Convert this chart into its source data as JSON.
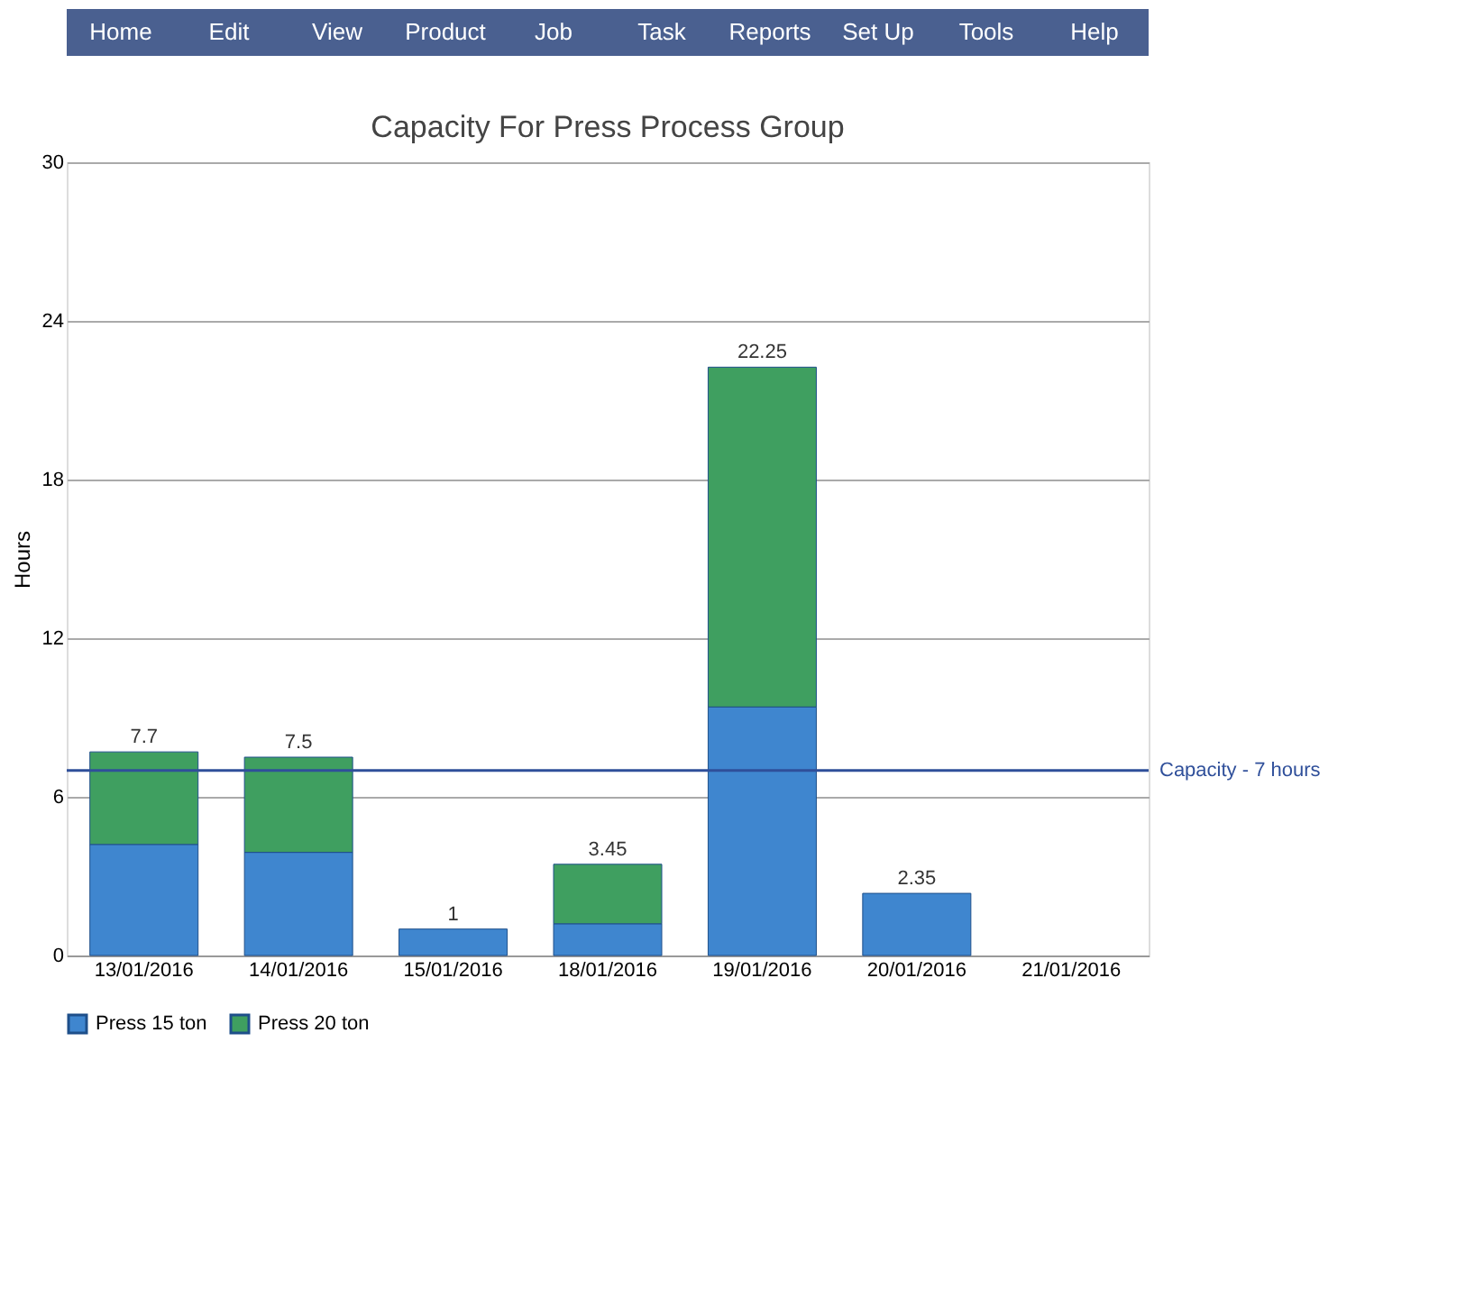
{
  "chart_data": {
    "type": "bar",
    "stacked": true,
    "title": "Capacity For Press Process Group",
    "ylabel": "Hours",
    "categories": [
      "13/01/2016",
      "14/01/2016",
      "15/01/2016",
      "18/01/2016",
      "19/01/2016",
      "20/01/2016",
      "21/01/2016"
    ],
    "series": [
      {
        "name": "Press 15 ton",
        "color": "#3f86cf",
        "values": [
          4.2,
          3.9,
          1,
          1.2,
          9.4,
          2.35,
          null
        ]
      },
      {
        "name": "Press 20 ton",
        "color": "#3f9f60",
        "values": [
          3.5,
          3.6,
          null,
          2.25,
          12.85,
          null,
          null
        ]
      }
    ],
    "totals": [
      "7.7",
      "7.5",
      "1",
      "3.45",
      "22.25",
      "2.35",
      null
    ],
    "ylim": [
      0,
      30
    ],
    "yticks": [
      0,
      6,
      12,
      18,
      24,
      30
    ],
    "grid": "y",
    "legend": "bottom",
    "ref_lines": [
      {
        "axis": "y",
        "value": 7,
        "label": "Capacity - 7 hours",
        "color": "#2f4f9a"
      }
    ],
    "annotations": [
      "Home",
      "Edit",
      "View",
      "Product",
      "Job",
      "Task",
      "Reports",
      "Set Up",
      "Tools",
      "Help"
    ]
  }
}
